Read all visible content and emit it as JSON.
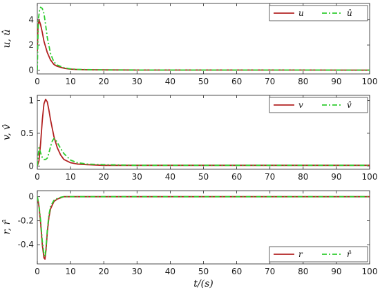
{
  "colors": {
    "estimate": "#2ecc2e",
    "true": "#b22222"
  },
  "chart_data": [
    {
      "type": "line",
      "ylabel": "u, û",
      "xlim": [
        0,
        100
      ],
      "ylim": [
        -0.3,
        5.3
      ],
      "xticks": [
        0,
        10,
        20,
        30,
        40,
        50,
        60,
        70,
        80,
        90,
        100
      ],
      "yticks": [
        0,
        2,
        4
      ],
      "xtick_labels": [
        "0",
        "10",
        "20",
        "30",
        "40",
        "50",
        "60",
        "70",
        "80",
        "90",
        "100"
      ],
      "ytick_labels": [
        "0",
        "2",
        "4"
      ],
      "legend_position": "top-right",
      "series": [
        {
          "name": "u",
          "style": "solid",
          "x": [
            0,
            0.2,
            0.5,
            1,
            1.5,
            2,
            3,
            4,
            5,
            6,
            8,
            10,
            12,
            15,
            20,
            30,
            40,
            60,
            80,
            100
          ],
          "y": [
            1.5,
            3.4,
            4.0,
            3.6,
            3.0,
            2.3,
            1.4,
            0.8,
            0.45,
            0.3,
            0.15,
            0.08,
            0.05,
            0.03,
            0.02,
            0.01,
            0.01,
            0.01,
            0.01,
            0.0
          ]
        },
        {
          "name": "û",
          "style": "dashdot",
          "x": [
            0,
            0.3,
            0.7,
            1,
            1.5,
            2,
            2.5,
            3,
            4,
            5,
            6,
            8,
            10,
            12,
            15,
            20,
            30,
            40,
            60,
            80,
            100
          ],
          "y": [
            0.0,
            4.0,
            4.8,
            5.0,
            4.9,
            4.5,
            3.6,
            2.6,
            1.3,
            0.65,
            0.4,
            0.2,
            0.1,
            0.06,
            0.04,
            0.02,
            0.01,
            0.01,
            0.01,
            0.01,
            0.0
          ]
        }
      ]
    },
    {
      "type": "line",
      "ylabel": "v, v̂",
      "xlim": [
        0,
        100
      ],
      "ylim": [
        -0.05,
        1.08
      ],
      "xticks": [
        0,
        10,
        20,
        30,
        40,
        50,
        60,
        70,
        80,
        90,
        100
      ],
      "yticks": [
        0,
        0.5,
        1
      ],
      "xtick_labels": [
        "0",
        "10",
        "20",
        "30",
        "40",
        "50",
        "60",
        "70",
        "80",
        "90",
        "100"
      ],
      "ytick_labels": [
        "0",
        "0.5",
        "1"
      ],
      "legend_position": "top-right",
      "series": [
        {
          "name": "v",
          "style": "solid",
          "x": [
            0,
            0.5,
            1,
            1.5,
            2,
            2.5,
            3,
            3.5,
            4,
            5,
            6,
            7,
            8,
            10,
            12,
            15,
            20,
            30,
            50,
            100
          ],
          "y": [
            0.0,
            0.08,
            0.35,
            0.7,
            0.95,
            1.02,
            0.98,
            0.85,
            0.7,
            0.45,
            0.28,
            0.17,
            0.1,
            0.05,
            0.03,
            0.02,
            0.01,
            0.01,
            0.01,
            0.01
          ]
        },
        {
          "name": "v̂",
          "style": "dashdot",
          "x": [
            0,
            0.5,
            1,
            1.5,
            2,
            2.5,
            3,
            3.5,
            4,
            4.5,
            5,
            5.5,
            6,
            7,
            8,
            10,
            12,
            15,
            20,
            30,
            50,
            100
          ],
          "y": [
            0.0,
            0.28,
            0.2,
            0.13,
            0.1,
            0.1,
            0.12,
            0.2,
            0.3,
            0.38,
            0.42,
            0.4,
            0.36,
            0.27,
            0.19,
            0.09,
            0.05,
            0.03,
            0.02,
            0.01,
            0.01,
            0.01
          ]
        }
      ]
    },
    {
      "type": "line",
      "ylabel": "r, r̂",
      "xlabel": "t/(s)",
      "xlim": [
        0,
        100
      ],
      "ylim": [
        -0.56,
        0.05
      ],
      "xticks": [
        0,
        10,
        20,
        30,
        40,
        50,
        60,
        70,
        80,
        90,
        100
      ],
      "yticks": [
        -0.4,
        -0.2,
        0
      ],
      "xtick_labels": [
        "0",
        "10",
        "20",
        "30",
        "40",
        "50",
        "60",
        "70",
        "80",
        "90",
        "100"
      ],
      "ytick_labels": [
        "-0.4",
        "-0.2",
        "0"
      ],
      "legend_position": "bottom-right",
      "series": [
        {
          "name": "r",
          "style": "solid",
          "x": [
            0,
            0.5,
            1,
            1.5,
            2,
            2.3,
            2.6,
            3,
            3.5,
            4,
            5,
            6,
            7,
            8,
            10,
            12,
            15,
            20,
            100
          ],
          "y": [
            0.0,
            -0.08,
            -0.22,
            -0.4,
            -0.51,
            -0.52,
            -0.45,
            -0.3,
            -0.17,
            -0.1,
            -0.04,
            -0.02,
            -0.01,
            0.0,
            0.0,
            0.0,
            0.0,
            0.0,
            0.0
          ]
        },
        {
          "name": "r̂",
          "style": "dashdot",
          "x": [
            0,
            0.5,
            1,
            1.5,
            2,
            2.3,
            2.6,
            3,
            3.5,
            4,
            5,
            6,
            7,
            8,
            10,
            12,
            15,
            20,
            100
          ],
          "y": [
            0.0,
            -0.07,
            -0.2,
            -0.37,
            -0.48,
            -0.5,
            -0.43,
            -0.28,
            -0.15,
            -0.08,
            -0.03,
            -0.015,
            -0.005,
            0.0,
            0.0,
            0.0,
            0.0,
            0.0,
            0.0
          ]
        }
      ]
    }
  ]
}
